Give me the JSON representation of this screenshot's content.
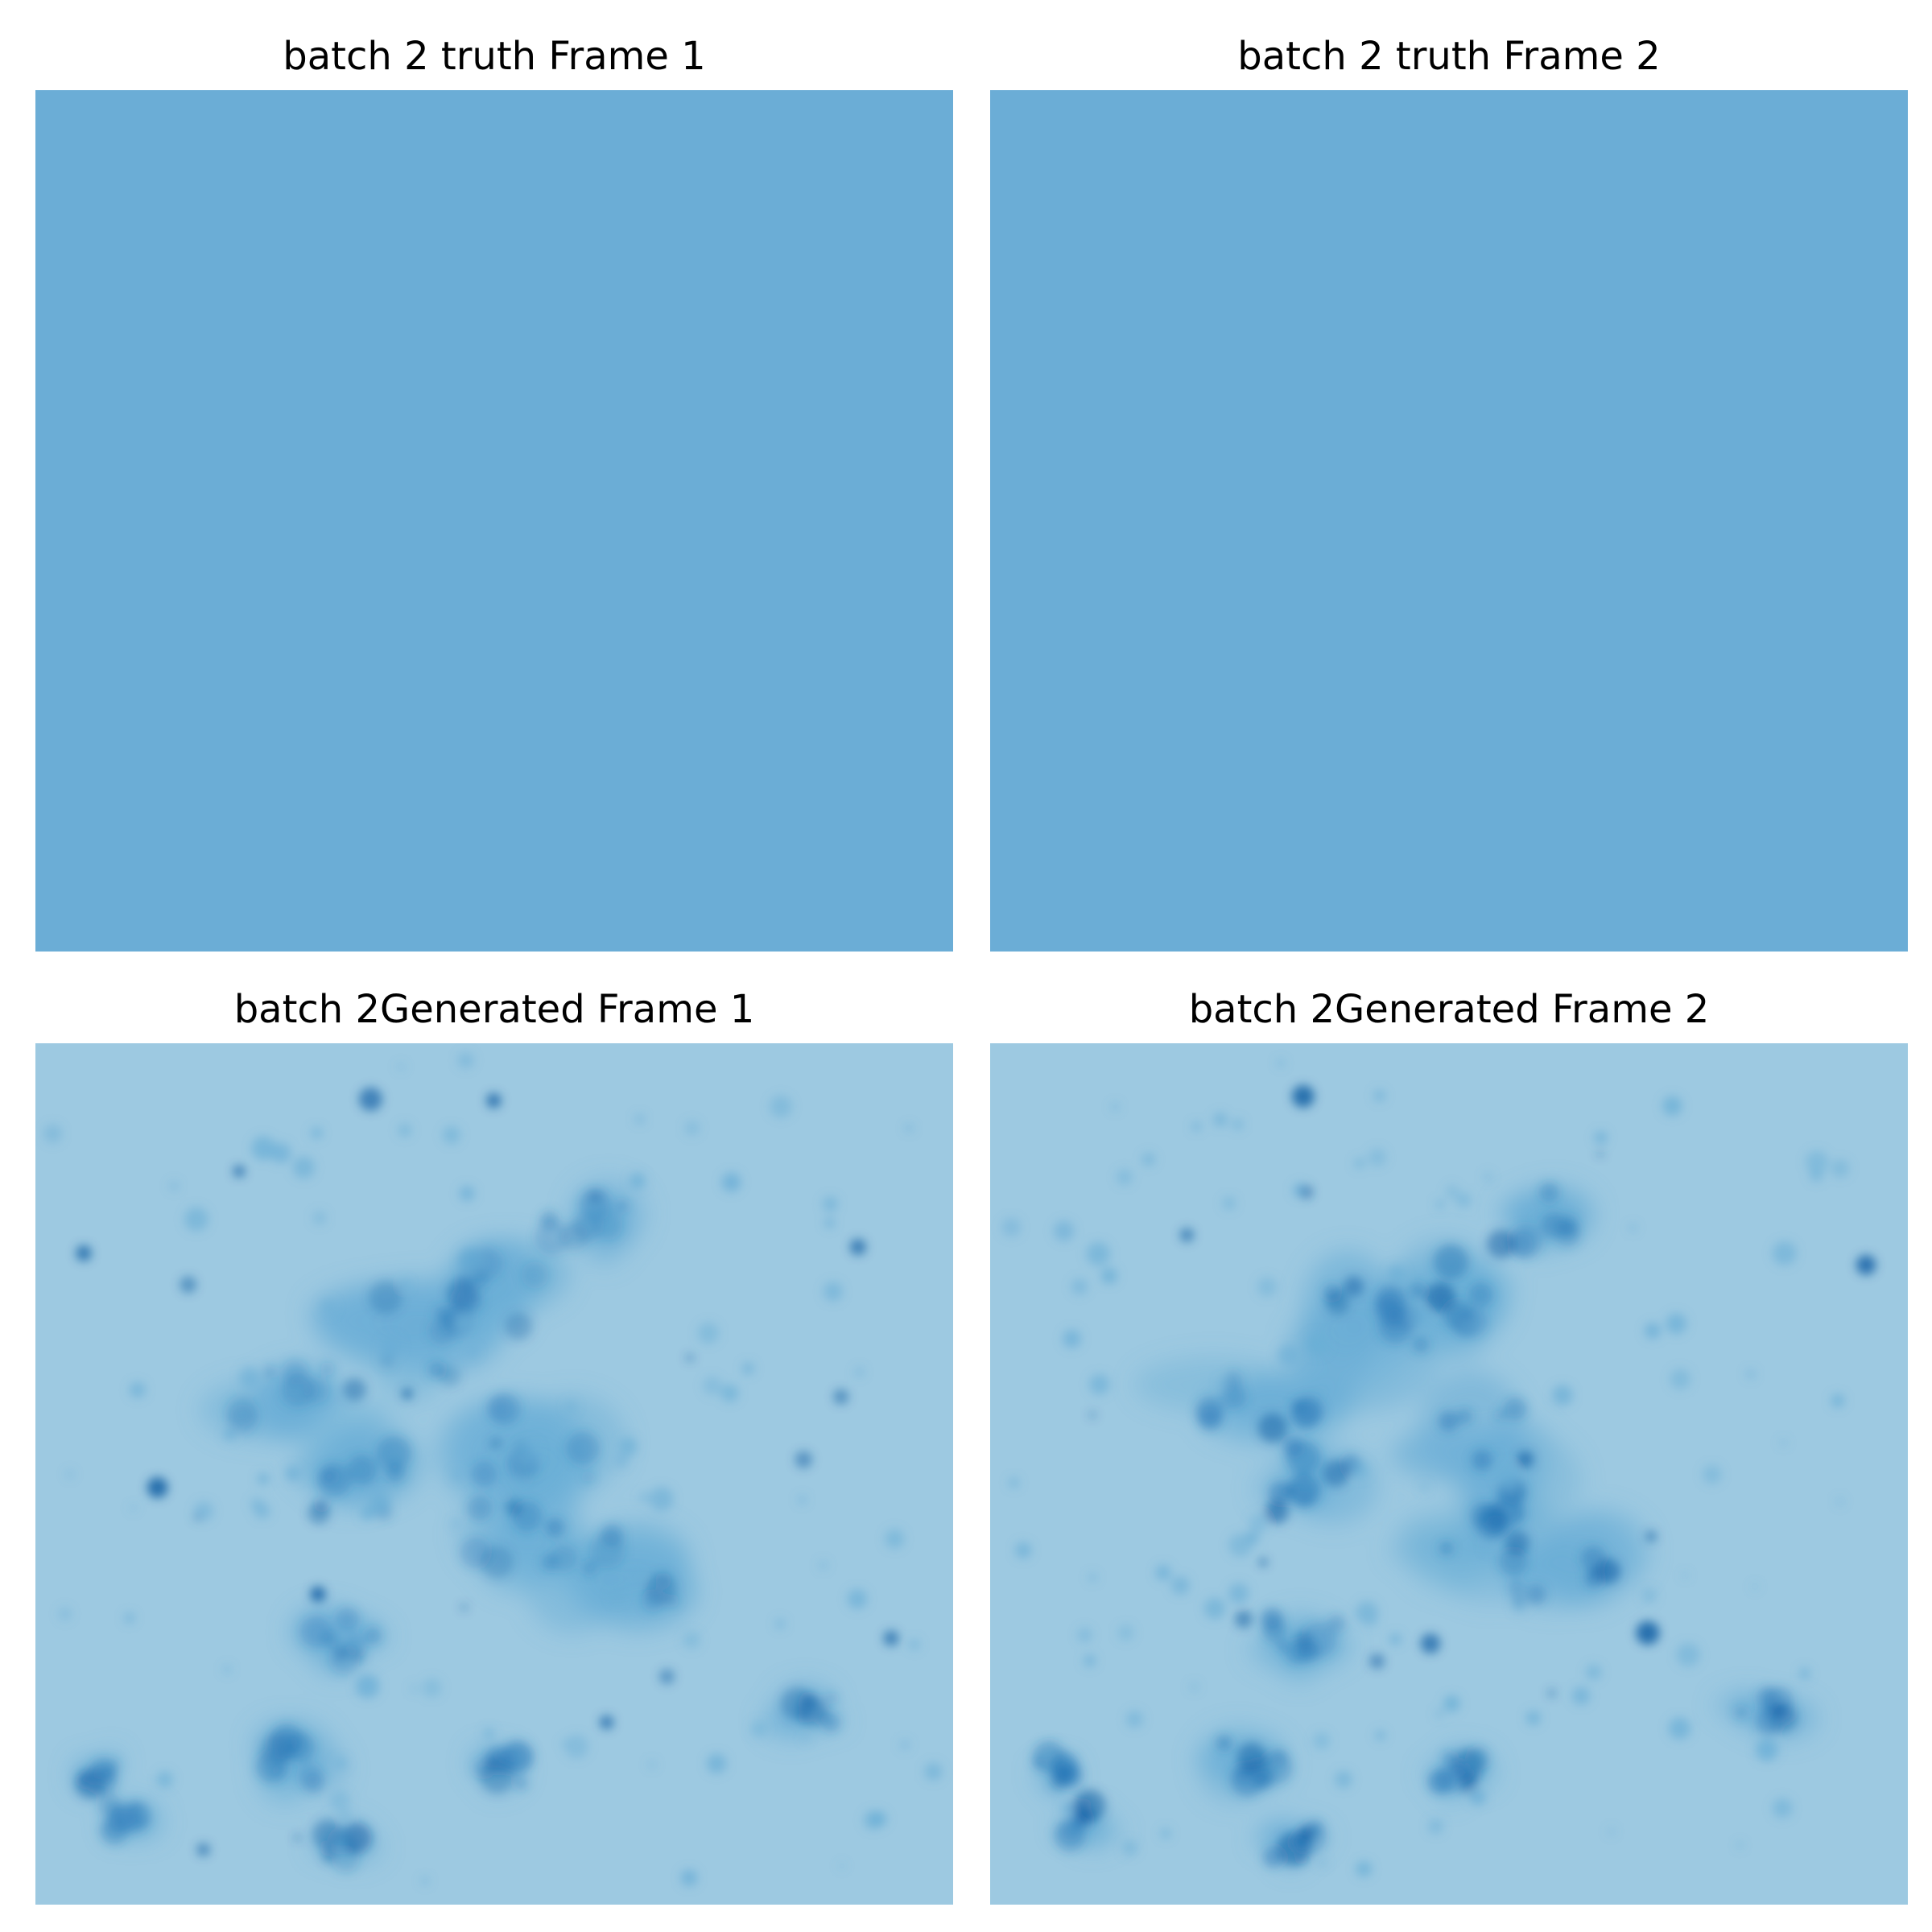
{
  "panels": [
    {
      "title": "batch 2 truth Frame 1",
      "kind": "uniform"
    },
    {
      "title": "batch 2 truth Frame 2",
      "kind": "uniform"
    },
    {
      "title": "batch 2Generated Frame 1",
      "kind": "field"
    },
    {
      "title": "batch 2Generated Frame 2",
      "kind": "field"
    }
  ],
  "colors": {
    "truth_fill": "#6badd6",
    "generated_background": "#9dc9e1",
    "generated_medium": "#6aaed6",
    "generated_dark": "#2a7ab9",
    "generated_darkest": "#08519c"
  }
}
